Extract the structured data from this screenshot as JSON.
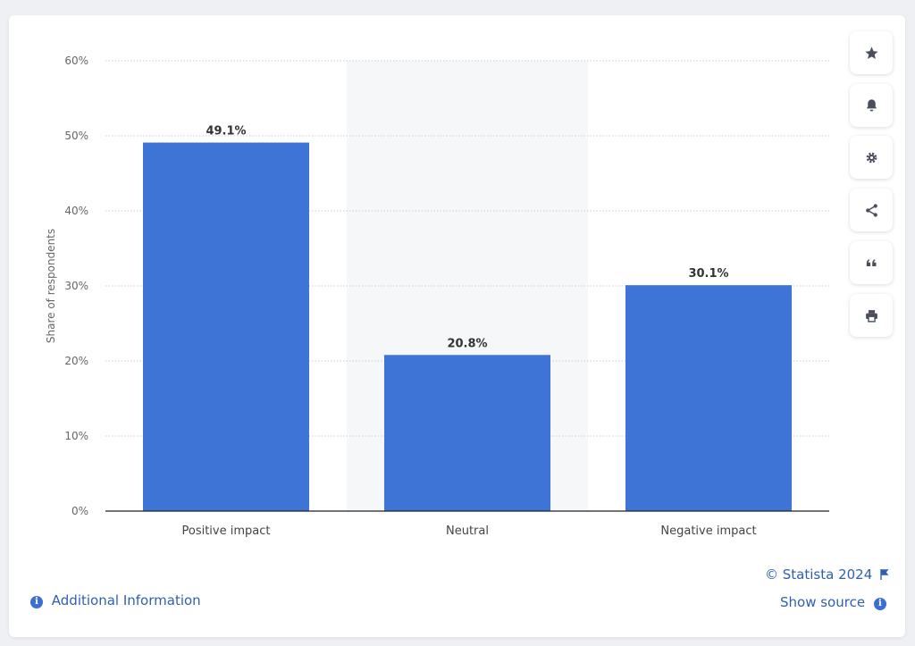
{
  "chart_data": {
    "type": "bar",
    "categories": [
      "Positive impact",
      "Neutral",
      "Negative impact"
    ],
    "values": [
      49.1,
      20.8,
      30.1
    ],
    "value_labels": [
      "49.1%",
      "20.8%",
      "30.1%"
    ],
    "ylabel": "Share of respondents",
    "ylim": [
      0,
      60
    ],
    "yticks": [
      0,
      10,
      20,
      30,
      40,
      50,
      60
    ],
    "ytick_labels": [
      "0%",
      "10%",
      "20%",
      "30%",
      "40%",
      "50%",
      "60%"
    ],
    "highlighted_category": "Neutral",
    "grid": true,
    "bar_color": "#3d74d6"
  },
  "toolbar": {
    "icons": [
      "star-icon",
      "bell-icon",
      "gear-icon",
      "share-icon",
      "quote-icon",
      "print-icon"
    ]
  },
  "footer": {
    "copyright": "© Statista 2024",
    "show_source": "Show source",
    "additional_info": "Additional Information"
  },
  "colors": {
    "accent": "#3d74d6",
    "link": "#2f5fb3"
  }
}
